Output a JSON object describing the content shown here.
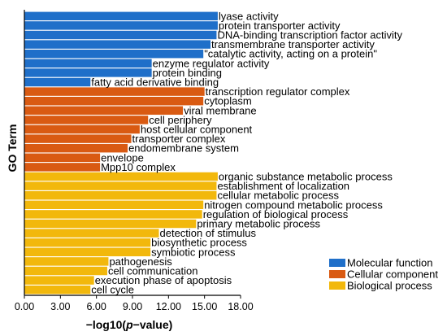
{
  "chart_data": {
    "type": "bar",
    "orientation": "horizontal",
    "xlabel_prefix": "−log10(",
    "xlabel_italic": "p",
    "xlabel_suffix": "−value)",
    "ylabel": "GO Term",
    "xlim": [
      0,
      18
    ],
    "xticks": [
      "0.00",
      "3.00",
      "6.00",
      "9.00",
      "12.00",
      "15.00",
      "18.00"
    ],
    "legend_position": "bottom-right",
    "series": [
      {
        "name": "Molecular function",
        "color": "#1f6fc9"
      },
      {
        "name": "Cellular component",
        "color": "#d95a12"
      },
      {
        "name": "Biological process",
        "color": "#f2b80c"
      }
    ],
    "bars": [
      {
        "label": "lyase activity",
        "value": 16.1,
        "series": 0
      },
      {
        "label": "protein transporter activity",
        "value": 16.1,
        "series": 0
      },
      {
        "label": "DNA-binding transcription factor activity",
        "value": 16.0,
        "series": 0
      },
      {
        "label": "transmembrane transporter activity",
        "value": 15.5,
        "series": 0
      },
      {
        "label": "\"catalytic activity, acting on a protein\"",
        "value": 14.9,
        "series": 0
      },
      {
        "label": "enzyme regulator activity",
        "value": 10.6,
        "series": 0
      },
      {
        "label": "protein binding",
        "value": 10.6,
        "series": 0
      },
      {
        "label": "fatty acid derivative binding",
        "value": 5.5,
        "series": 0
      },
      {
        "label": "transcription regulator complex",
        "value": 15.0,
        "series": 1
      },
      {
        "label": "cytoplasm",
        "value": 14.9,
        "series": 1
      },
      {
        "label": "viral membrane",
        "value": 13.2,
        "series": 1
      },
      {
        "label": "cell periphery",
        "value": 10.3,
        "series": 1
      },
      {
        "label": "host cellular component",
        "value": 9.6,
        "series": 1
      },
      {
        "label": "transporter complex",
        "value": 8.9,
        "series": 1
      },
      {
        "label": "endomembrane system",
        "value": 8.6,
        "series": 1
      },
      {
        "label": "envelope",
        "value": 6.3,
        "series": 1
      },
      {
        "label": "Mpp10 complex",
        "value": 6.3,
        "series": 1
      },
      {
        "label": "organic substance metabolic process",
        "value": 16.1,
        "series": 2
      },
      {
        "label": "establishment of localization",
        "value": 16.0,
        "series": 2
      },
      {
        "label": "cellular metabolic process",
        "value": 16.0,
        "series": 2
      },
      {
        "label": "nitrogen compound metabolic process",
        "value": 14.9,
        "series": 2
      },
      {
        "label": "regulation of biological process",
        "value": 14.8,
        "series": 2
      },
      {
        "label": "primary metabolic process",
        "value": 14.3,
        "series": 2
      },
      {
        "label": "detection of stimulus",
        "value": 11.2,
        "series": 2
      },
      {
        "label": "biosynthetic process",
        "value": 10.5,
        "series": 2
      },
      {
        "label": "symbiotic process",
        "value": 10.5,
        "series": 2
      },
      {
        "label": "pathogenesis",
        "value": 7.0,
        "series": 2
      },
      {
        "label": "cell communication",
        "value": 6.9,
        "series": 2
      },
      {
        "label": "execution phase of apoptosis",
        "value": 5.8,
        "series": 2
      },
      {
        "label": "cell cycle",
        "value": 5.5,
        "series": 2
      }
    ]
  }
}
